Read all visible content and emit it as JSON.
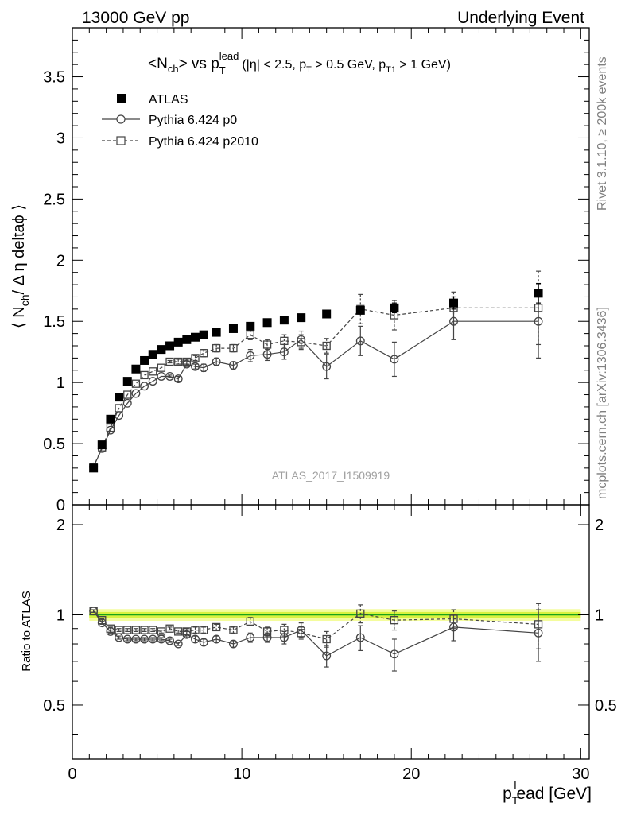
{
  "header": {
    "left": "13000 GeV pp",
    "right": "Underlying Event"
  },
  "side_labels": {
    "rivet": "Rivet 3.1.10, ≥ 200k events",
    "mcplots": "mcplots.cern.ch [arXiv:1306.3436]"
  },
  "chart_data": {
    "type": "scatter",
    "title": {
      "base": "<N",
      "base_sub": "ch",
      "mid": "> vs p",
      "mid_sub": "T",
      "mid_sup": "lead",
      "cuts_a": "(|η| < 2.5, p",
      "cuts_a_sub": "T",
      "cuts_b": " > 0.5 GeV, p",
      "cuts_b_sub": "T1",
      "cuts_c": " > 1 GeV)"
    },
    "analysis_label": "ATLAS_2017_I1509919",
    "ylabel": {
      "pre": "⟨ N",
      "sub": "ch",
      "post": "/ Δ η deltaϕ ⟩"
    },
    "ratio_ylabel": "Ratio to ATLAS",
    "xlabel": {
      "pre": "p",
      "sub": "T",
      "sup": "l",
      "post": "ead [GeV]"
    },
    "xlim": [
      0,
      30.5
    ],
    "ylim": [
      0,
      3.9
    ],
    "ratio_ylim": [
      0.33,
      2.33
    ],
    "x_ticks": [
      "0",
      "10",
      "20",
      "30"
    ],
    "y_ticks": [
      "0",
      "0.5",
      "1",
      "1.5",
      "2",
      "2.5",
      "3",
      "3.5"
    ],
    "ratio_ticks": [
      "0.5",
      "1",
      "2"
    ],
    "legend": {
      "position": "top-left"
    },
    "x": [
      1.25,
      1.75,
      2.25,
      2.75,
      3.25,
      3.75,
      4.25,
      4.75,
      5.25,
      5.75,
      6.25,
      6.75,
      7.25,
      7.75,
      8.5,
      9.5,
      10.5,
      11.5,
      12.5,
      13.5,
      15.0,
      17.0,
      19.0,
      22.5,
      27.5
    ],
    "series": [
      {
        "name": "ATLAS",
        "y": [
          0.3,
          0.49,
          0.7,
          0.88,
          1.01,
          1.11,
          1.18,
          1.23,
          1.27,
          1.3,
          1.33,
          1.35,
          1.37,
          1.39,
          1.41,
          1.44,
          1.46,
          1.49,
          1.51,
          1.53,
          1.56,
          1.59,
          1.61,
          1.65,
          1.73
        ],
        "err": [
          0.01,
          0.01,
          0.01,
          0.01,
          0.01,
          0.01,
          0.01,
          0.01,
          0.01,
          0.01,
          0.01,
          0.01,
          0.01,
          0.01,
          0.01,
          0.01,
          0.01,
          0.01,
          0.01,
          0.01,
          0.02,
          0.03,
          0.04,
          0.05,
          0.08
        ]
      },
      {
        "name": "Pythia 6.424 p0",
        "y": [
          0.31,
          0.46,
          0.61,
          0.73,
          0.83,
          0.91,
          0.97,
          1.01,
          1.05,
          1.05,
          1.03,
          1.15,
          1.13,
          1.12,
          1.17,
          1.14,
          1.22,
          1.23,
          1.25,
          1.35,
          1.13,
          1.34,
          1.19,
          1.5,
          1.5
        ],
        "err": [
          0.0,
          0.0,
          0.0,
          0.0,
          0.0,
          0.0,
          0.0,
          0.0,
          0.0,
          0.01,
          0.02,
          0.02,
          0.02,
          0.03,
          0.03,
          0.03,
          0.05,
          0.05,
          0.06,
          0.07,
          0.1,
          0.12,
          0.14,
          0.15,
          0.3
        ],
        "ratio": [
          1.03,
          0.94,
          0.88,
          0.84,
          0.83,
          0.83,
          0.83,
          0.83,
          0.83,
          0.82,
          0.8,
          0.86,
          0.83,
          0.81,
          0.83,
          0.8,
          0.84,
          0.84,
          0.84,
          0.89,
          0.73,
          0.84,
          0.74,
          0.91,
          0.87
        ],
        "ratio_err": [
          0.01,
          0.01,
          0.01,
          0.01,
          0.01,
          0.01,
          0.01,
          0.01,
          0.01,
          0.01,
          0.01,
          0.02,
          0.02,
          0.02,
          0.02,
          0.02,
          0.03,
          0.03,
          0.04,
          0.05,
          0.06,
          0.08,
          0.09,
          0.09,
          0.17
        ]
      },
      {
        "name": "Pythia 6.424 p2010",
        "y": [
          0.31,
          0.47,
          0.63,
          0.79,
          0.9,
          0.99,
          1.06,
          1.09,
          1.12,
          1.17,
          1.17,
          1.17,
          1.2,
          1.24,
          1.28,
          1.28,
          1.39,
          1.31,
          1.34,
          1.33,
          1.3,
          1.6,
          1.55,
          1.61,
          1.61
        ],
        "err": [
          0.0,
          0.0,
          0.0,
          0.0,
          0.0,
          0.0,
          0.0,
          0.0,
          0.0,
          0.01,
          0.02,
          0.02,
          0.02,
          0.03,
          0.03,
          0.03,
          0.04,
          0.04,
          0.05,
          0.06,
          0.06,
          0.12,
          0.12,
          0.13,
          0.3
        ],
        "ratio": [
          1.03,
          0.96,
          0.9,
          0.89,
          0.89,
          0.89,
          0.89,
          0.89,
          0.88,
          0.9,
          0.88,
          0.88,
          0.89,
          0.89,
          0.91,
          0.89,
          0.95,
          0.88,
          0.89,
          0.87,
          0.83,
          1.01,
          0.96,
          0.97,
          0.93
        ],
        "ratio_err": [
          0.01,
          0.01,
          0.01,
          0.01,
          0.01,
          0.01,
          0.01,
          0.01,
          0.01,
          0.01,
          0.01,
          0.02,
          0.02,
          0.02,
          0.02,
          0.02,
          0.03,
          0.03,
          0.04,
          0.04,
          0.05,
          0.07,
          0.07,
          0.07,
          0.16
        ]
      }
    ],
    "colors": {
      "data": "#000000",
      "mc": "#444444",
      "band_inner": "#d9f23f",
      "band_outer": "#f4fc9c",
      "ratio_line": "#19a319",
      "analysis_label": "#a0a0a0",
      "side_text": "#808080"
    }
  }
}
